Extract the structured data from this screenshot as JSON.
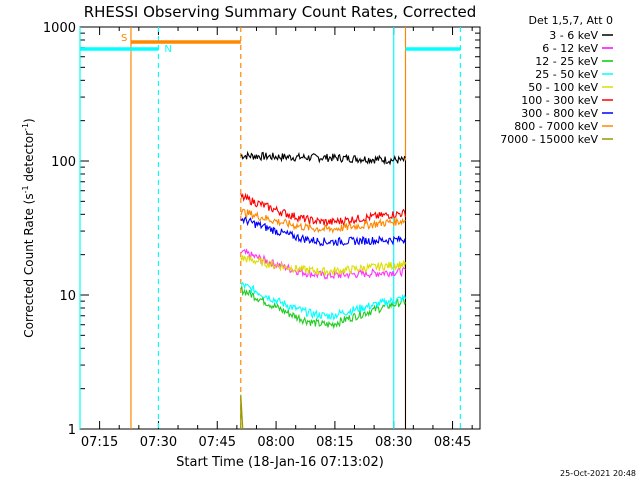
{
  "chart_data": {
    "type": "line",
    "title": "RHESSI Observing Summary Count Rates, Corrected",
    "xlabel": "Start Time (18-Jan-16 07:13:02)",
    "ylabel": "Corrected Count Rate (s",
    "ylabel_sup": "-1",
    "ylabel_tail": " detector",
    "ylabel_sup2": "-1",
    "ylabel_end": ")",
    "footer": "25-Oct-2021 20:48",
    "legend_title": "Det 1,5,7, Att 0",
    "yscale": "log",
    "ylim": [
      1,
      1000
    ],
    "ytick_labels": [
      "1",
      "10",
      "100",
      "1000"
    ],
    "yticks": [
      1,
      10,
      100,
      1000
    ],
    "xlim": [
      "07:10",
      "08:52"
    ],
    "xticks": [
      "07:15",
      "07:30",
      "07:45",
      "08:00",
      "08:15",
      "08:30",
      "08:45"
    ],
    "data_start": "07:51",
    "data_end": "08:33",
    "series": [
      {
        "name": "3 - 6 keV",
        "color": "#000000",
        "trace": "#000000",
        "start": 110,
        "valley": 106,
        "end": 101
      },
      {
        "name": "6 - 12 keV",
        "color": "#ff00ff",
        "trace": "#ff33ff",
        "start": 21,
        "valley": 14,
        "end": 15
      },
      {
        "name": "12 - 25 keV",
        "color": "#00cc00",
        "trace": "#22cc22",
        "start": 11,
        "valley": 6,
        "end": 9
      },
      {
        "name": "25 - 50 keV",
        "color": "#00ffff",
        "trace": "#00ffff",
        "start": 12,
        "valley": 7,
        "end": 9.5
      },
      {
        "name": "50 - 100 keV",
        "color": "#dddd00",
        "trace": "#dddd00",
        "start": 19,
        "valley": 15,
        "end": 17
      },
      {
        "name": "100 - 300 keV",
        "color": "#ff0000",
        "trace": "#ff0000",
        "start": 54,
        "valley": 35,
        "end": 41
      },
      {
        "name": "300 - 800 keV",
        "color": "#0000ff",
        "trace": "#0000ff",
        "start": 37,
        "valley": 25,
        "end": 26
      },
      {
        "name": "800 - 7000 keV",
        "color": "#ff8800",
        "trace": "#ff8800",
        "start": 42,
        "valley": 31,
        "end": 36
      },
      {
        "name": "7000 - 15000 keV",
        "color": "#999900",
        "trace": "#999900",
        "start": 1.8,
        "valley": 1.0,
        "end": 1.0
      }
    ],
    "flags": [
      {
        "label": "S",
        "color": "#ff8800",
        "start": "07:23",
        "end": "07:51"
      },
      {
        "label": "N",
        "color": "#00ffff",
        "start": "07:10",
        "end": "07:30",
        "extra_start": "08:33",
        "extra_end": "08:47"
      }
    ],
    "vlines": [
      {
        "time": "07:23",
        "color": "#ff8800",
        "style": "solid"
      },
      {
        "time": "07:51",
        "color": "#ff8800",
        "style": "dashed"
      },
      {
        "time": "08:33",
        "color": "#ff8800",
        "style": "solid"
      },
      {
        "time": "07:10",
        "color": "#00ffff",
        "style": "solid"
      },
      {
        "time": "07:30",
        "color": "#00ffff",
        "style": "dashed"
      },
      {
        "time": "08:30",
        "color": "#00ffff",
        "style": "solid"
      },
      {
        "time": "08:47",
        "color": "#00ffff",
        "style": "dashed"
      }
    ],
    "grid": false,
    "legend_position": "right"
  },
  "colors": {
    "background": "#ffffff",
    "axes": "#000000"
  }
}
